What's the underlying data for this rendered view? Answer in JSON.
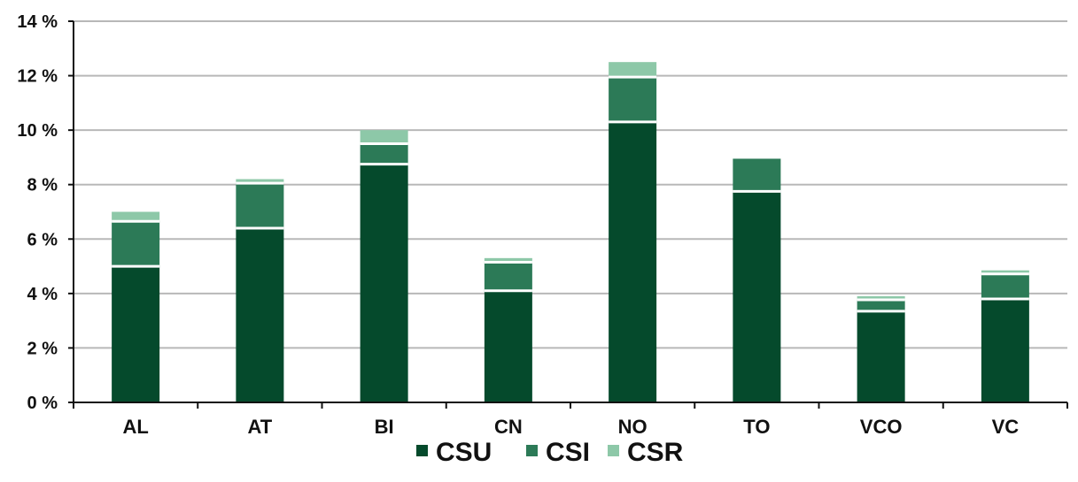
{
  "chart_data": {
    "type": "bar",
    "stacked": true,
    "title": "",
    "xlabel": "",
    "ylabel": "",
    "categories": [
      "AL",
      "AT",
      "BI",
      "CN",
      "NO",
      "TO",
      "VCO",
      "VC"
    ],
    "series": [
      {
        "name": "CSU",
        "color": "#054a2c",
        "values": [
          5.0,
          6.4,
          8.75,
          4.1,
          10.3,
          7.75,
          3.35,
          3.8
        ]
      },
      {
        "name": "CSI",
        "color": "#2c7a57",
        "values": [
          1.65,
          1.65,
          0.75,
          1.05,
          1.65,
          1.2,
          0.42,
          0.92
        ]
      },
      {
        "name": "CSR",
        "color": "#8dc8a8",
        "values": [
          0.35,
          0.15,
          0.5,
          0.15,
          0.55,
          0.0,
          0.13,
          0.13
        ]
      }
    ],
    "ylim": [
      0,
      14
    ],
    "yticks": [
      0,
      2,
      4,
      6,
      8,
      10,
      12,
      14
    ],
    "ytick_labels": [
      "0 %",
      "2 %",
      "4 %",
      "6 %",
      "8 %",
      "10 %",
      "12 %",
      "14 %"
    ],
    "grid": true,
    "legend_position": "bottom"
  }
}
